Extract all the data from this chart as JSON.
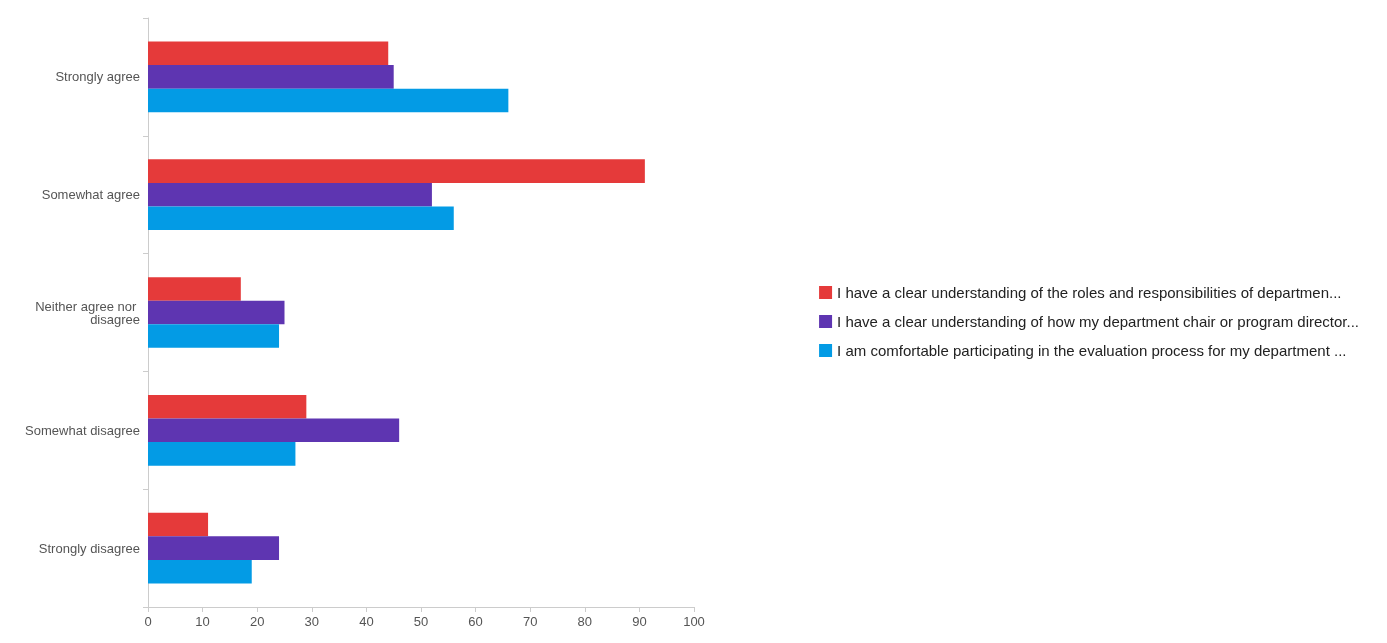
{
  "chart_data": {
    "type": "bar",
    "orientation": "horizontal",
    "categories": [
      "Strongly agree",
      "Somewhat agree",
      "Neither agree nor disagree",
      "Somewhat disagree",
      "Strongly disagree"
    ],
    "series": [
      {
        "name": "I have a clear understanding of the roles and responsibilities of departmen...",
        "color": "#e53a3a",
        "values": [
          44,
          91,
          17,
          29,
          11
        ]
      },
      {
        "name": "I have a clear understanding of how my department chair or program director...",
        "color": "#5e35b1",
        "values": [
          45,
          52,
          25,
          46,
          24
        ]
      },
      {
        "name": "I am comfortable participating in the evaluation process for my department ...",
        "color": "#039be5",
        "values": [
          66,
          56,
          24,
          27,
          19
        ]
      }
    ],
    "xlim": [
      0,
      100
    ],
    "xticks": [
      0,
      10,
      20,
      30,
      40,
      50,
      60,
      70,
      80,
      90,
      100
    ],
    "grid": false,
    "legend": "right"
  }
}
